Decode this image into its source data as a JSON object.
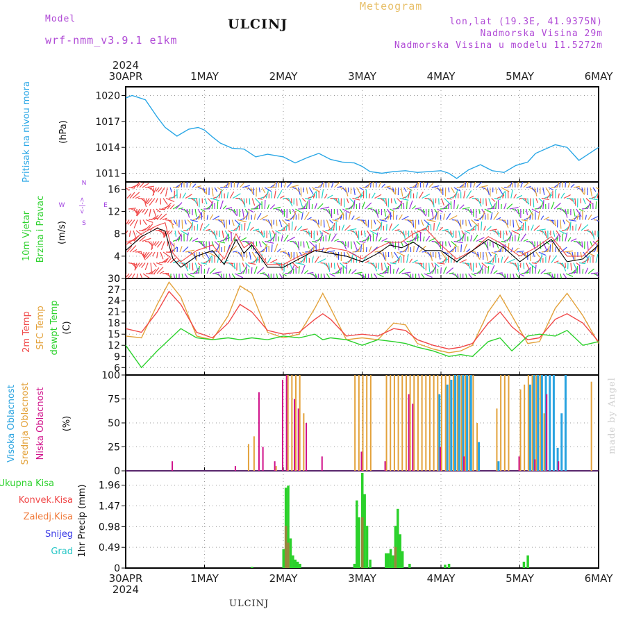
{
  "header": {
    "model_label": "Model",
    "model_name": "wrf-nmm_v3.9.1 e1km",
    "title": "ULCINJ",
    "meteogram_label": "Meteogram",
    "lonlat": "lon,lat (19.3E, 41.9375N)",
    "elevation": "Nadmorska Visina 29m",
    "model_elevation": "Nadmorska Visina u modelu 11.5272m"
  },
  "footer": {
    "station": "ULCINJ",
    "credit": "made by Angel"
  },
  "colors": {
    "pressure": "#2aa7e6",
    "t2m": "#f04848",
    "sfc": "#e3a23b",
    "dewpt": "#2bd12b",
    "wind_speed": "#000000",
    "gust": "#f04848",
    "cloud_high": "#29a3e0",
    "cloud_mid": "#e3a23b",
    "cloud_low": "#d0108a",
    "precip_total": "#2bd12b",
    "precip_conv": "#f04848"
  },
  "chart_data": [
    {
      "type": "line",
      "name": "pressure",
      "year_label": "2024",
      "x_labels": [
        "30APR",
        "1MAY",
        "2MAY",
        "3MAY",
        "4MAY",
        "5MAY",
        "6MAY"
      ],
      "ylabel_left": "Pritisak na nivou mora",
      "ylabel_unit": "(hPa)",
      "yticks": [
        1011,
        1014,
        1017,
        1020
      ],
      "ylim": [
        1010,
        1021
      ],
      "x_days": [
        0,
        0.08,
        0.15,
        0.25,
        0.4,
        0.5,
        0.65,
        0.8,
        0.92,
        1.0,
        1.1,
        1.2,
        1.35,
        1.5,
        1.65,
        1.8,
        2.0,
        2.15,
        2.3,
        2.45,
        2.6,
        2.75,
        2.9,
        3.0,
        3.1,
        3.25,
        3.4,
        3.55,
        3.7,
        3.85,
        4.0,
        4.1,
        4.2,
        4.35,
        4.5,
        4.65,
        4.8,
        4.95,
        5.1,
        5.2,
        5.3,
        5.45,
        5.6,
        5.75,
        5.9,
        6.0
      ],
      "values": [
        1019.7,
        1020.0,
        1019.8,
        1019.5,
        1017.5,
        1016.3,
        1015.3,
        1016.1,
        1016.3,
        1016.0,
        1015.2,
        1014.5,
        1013.9,
        1013.8,
        1012.9,
        1013.2,
        1012.9,
        1012.2,
        1012.8,
        1013.3,
        1012.6,
        1012.3,
        1012.2,
        1011.8,
        1011.2,
        1011.0,
        1011.2,
        1011.3,
        1011.1,
        1011.2,
        1011.3,
        1011.0,
        1010.4,
        1011.4,
        1012.0,
        1011.3,
        1011.1,
        1011.9,
        1012.3,
        1013.3,
        1013.7,
        1014.3,
        1014.0,
        1012.5,
        1013.4,
        1014.0
      ]
    },
    {
      "type": "line",
      "name": "wind",
      "ylabel_left": "10m Vjetar",
      "ylabel_left2": "Brzina i Pravac",
      "ylabel_unit": "(m/s)",
      "compass_left": "W",
      "compass_right": "E",
      "compass_arrows": "<-|->",
      "compass_top": "N",
      "compass_bottom": "S",
      "yticks": [
        0,
        4,
        8,
        12,
        16
      ],
      "ylim": [
        0,
        17.3
      ],
      "x_days": [
        0,
        0.2,
        0.4,
        0.5,
        0.6,
        0.7,
        0.9,
        1.1,
        1.25,
        1.4,
        1.5,
        1.6,
        1.8,
        2.0,
        2.2,
        2.4,
        2.6,
        2.8,
        3.0,
        3.2,
        3.35,
        3.5,
        3.65,
        3.8,
        4.0,
        4.2,
        4.4,
        4.6,
        4.8,
        5.0,
        5.2,
        5.4,
        5.6,
        5.8,
        6.0
      ],
      "speed": [
        5.0,
        7.5,
        9.0,
        8.5,
        3.5,
        2.0,
        4.0,
        5.0,
        2.5,
        7.0,
        4.5,
        6.0,
        2.0,
        2.0,
        3.5,
        5.0,
        4.5,
        4.0,
        3.0,
        4.5,
        6.0,
        5.5,
        6.5,
        5.0,
        5.0,
        3.0,
        5.0,
        7.0,
        5.5,
        3.0,
        5.0,
        7.0,
        3.0,
        3.5,
        6.0
      ],
      "gust": [
        6.0,
        8.0,
        9.5,
        10.0,
        4.5,
        3.0,
        5.0,
        6.0,
        3.5,
        8.0,
        5.5,
        6.5,
        2.5,
        2.5,
        4.0,
        5.0,
        5.5,
        5.0,
        3.5,
        5.5,
        6.5,
        6.5,
        8.0,
        9.0,
        6.0,
        3.5,
        5.0,
        7.5,
        6.0,
        4.0,
        5.5,
        7.5,
        4.0,
        4.0,
        7.0
      ]
    },
    {
      "type": "line",
      "name": "temperature",
      "ylabel_1": "2m Temp",
      "ylabel_2": "SFC Temp",
      "ylabel_3": "dewpt Temp",
      "ylabel_unit": "(C)",
      "yticks": [
        6,
        9,
        12,
        15,
        18,
        21,
        24,
        27,
        30
      ],
      "ylim": [
        4,
        30
      ],
      "x_days": [
        0,
        0.2,
        0.4,
        0.55,
        0.7,
        0.9,
        1.1,
        1.3,
        1.45,
        1.6,
        1.8,
        2.0,
        2.2,
        2.4,
        2.5,
        2.6,
        2.8,
        3.0,
        3.2,
        3.4,
        3.55,
        3.7,
        3.9,
        4.1,
        4.25,
        4.4,
        4.6,
        4.75,
        4.9,
        5.1,
        5.25,
        5.45,
        5.6,
        5.8,
        6.0
      ],
      "t2m": [
        16.5,
        15.5,
        21.0,
        26.5,
        23.0,
        15.5,
        14.0,
        18.0,
        23.0,
        21.0,
        16.0,
        15.0,
        15.5,
        19.0,
        20.5,
        19.0,
        14.5,
        15.0,
        14.5,
        16.5,
        16.0,
        13.5,
        12.0,
        11.0,
        11.5,
        12.5,
        18.0,
        21.0,
        17.0,
        13.5,
        14.0,
        19.0,
        20.5,
        18.0,
        13.0
      ],
      "sfc": [
        14.5,
        14.0,
        23.0,
        29.0,
        25.0,
        14.5,
        13.5,
        20.0,
        28.0,
        26.0,
        15.5,
        14.0,
        15.0,
        22.0,
        26.0,
        22.0,
        13.5,
        14.0,
        13.5,
        18.0,
        17.5,
        12.5,
        11.0,
        10.0,
        10.5,
        12.0,
        21.0,
        25.5,
        20.0,
        12.5,
        13.0,
        22.0,
        26.0,
        20.0,
        12.5
      ],
      "dewpt": [
        12.0,
        6.0,
        10.5,
        13.5,
        16.5,
        14.0,
        13.5,
        14.0,
        13.5,
        14.0,
        13.5,
        14.5,
        14.0,
        15.0,
        13.5,
        14.0,
        13.5,
        12.0,
        13.5,
        13.0,
        12.5,
        11.5,
        10.5,
        9.0,
        9.5,
        9.0,
        13.0,
        14.0,
        10.5,
        14.5,
        15.0,
        14.5,
        16.0,
        12.0,
        13.0
      ]
    },
    {
      "type": "bar",
      "name": "cloud_cover",
      "ylabel_1": "Visoka Oblacnost",
      "ylabel_2": "Srednja Oblacnost",
      "ylabel_3": "Niska Oblacnost",
      "ylabel_unit": "(%)",
      "yticks": [
        0,
        25,
        50,
        75,
        100
      ],
      "ylim": [
        0,
        100
      ],
      "low": [
        [
          0.6,
          10
        ],
        [
          1.4,
          5
        ],
        [
          1.7,
          82
        ],
        [
          1.75,
          25
        ],
        [
          1.9,
          10
        ],
        [
          2.0,
          95
        ],
        [
          2.05,
          100
        ],
        [
          2.15,
          75
        ],
        [
          2.2,
          65
        ],
        [
          2.3,
          50
        ],
        [
          2.5,
          15
        ],
        [
          3.0,
          20
        ],
        [
          3.3,
          10
        ],
        [
          3.6,
          80
        ],
        [
          3.65,
          70
        ],
        [
          4.0,
          25
        ],
        [
          4.3,
          15
        ],
        [
          5.0,
          15
        ],
        [
          5.2,
          12
        ],
        [
          5.35,
          80
        ],
        [
          5.5,
          10
        ]
      ],
      "mid": [
        [
          1.55,
          28
        ],
        [
          1.62,
          36
        ],
        [
          1.9,
          5
        ],
        [
          2.05,
          100
        ],
        [
          2.1,
          100
        ],
        [
          2.15,
          100
        ],
        [
          2.2,
          100
        ],
        [
          2.25,
          60
        ],
        [
          2.9,
          100
        ],
        [
          2.95,
          100
        ],
        [
          3.0,
          100
        ],
        [
          3.05,
          100
        ],
        [
          3.1,
          100
        ],
        [
          3.3,
          100
        ],
        [
          3.35,
          100
        ],
        [
          3.4,
          100
        ],
        [
          3.45,
          100
        ],
        [
          3.5,
          100
        ],
        [
          3.55,
          100
        ],
        [
          3.6,
          100
        ],
        [
          3.65,
          100
        ],
        [
          3.7,
          100
        ],
        [
          3.75,
          100
        ],
        [
          3.8,
          100
        ],
        [
          3.85,
          100
        ],
        [
          3.9,
          100
        ],
        [
          3.95,
          100
        ],
        [
          4.0,
          100
        ],
        [
          4.05,
          100
        ],
        [
          4.1,
          100
        ],
        [
          4.15,
          100
        ],
        [
          4.2,
          100
        ],
        [
          4.25,
          100
        ],
        [
          4.3,
          100
        ],
        [
          4.35,
          100
        ],
        [
          4.4,
          100
        ],
        [
          4.45,
          50
        ],
        [
          4.7,
          65
        ],
        [
          4.75,
          100
        ],
        [
          4.8,
          100
        ],
        [
          4.85,
          100
        ],
        [
          5.0,
          85
        ],
        [
          5.05,
          90
        ],
        [
          5.1,
          100
        ],
        [
          5.15,
          100
        ],
        [
          5.2,
          100
        ],
        [
          5.25,
          100
        ],
        [
          5.3,
          60
        ],
        [
          5.9,
          93
        ]
      ],
      "high": [
        [
          3.95,
          80
        ],
        [
          4.05,
          90
        ],
        [
          4.1,
          95
        ],
        [
          4.15,
          100
        ],
        [
          4.2,
          100
        ],
        [
          4.25,
          100
        ],
        [
          4.3,
          100
        ],
        [
          4.35,
          100
        ],
        [
          4.45,
          30
        ],
        [
          4.7,
          10
        ],
        [
          5.1,
          90
        ],
        [
          5.15,
          100
        ],
        [
          5.2,
          100
        ],
        [
          5.25,
          100
        ],
        [
          5.3,
          100
        ],
        [
          5.35,
          100
        ],
        [
          5.4,
          100
        ],
        [
          5.45,
          24
        ],
        [
          5.5,
          60
        ],
        [
          5.55,
          100
        ]
      ]
    },
    {
      "type": "bar",
      "name": "precipitation",
      "ylabel_legend": [
        "Ukupna Kisa",
        "Konvek.Kisa",
        "Zaledj.Kisa",
        "Snijeg",
        "Grad"
      ],
      "ylabel_unit": "1hr Precip (mm)",
      "yticks": [
        0,
        0.49,
        0.98,
        1.47,
        1.96
      ],
      "ylim": [
        0,
        2.3
      ],
      "total": [
        [
          1.6,
          0.03
        ],
        [
          2.0,
          0.45
        ],
        [
          2.03,
          1.9
        ],
        [
          2.06,
          1.95
        ],
        [
          2.09,
          0.7
        ],
        [
          2.12,
          0.3
        ],
        [
          2.15,
          0.2
        ],
        [
          2.18,
          0.15
        ],
        [
          2.21,
          0.1
        ],
        [
          2.9,
          0.1
        ],
        [
          2.93,
          1.6
        ],
        [
          2.96,
          1.2
        ],
        [
          3.0,
          2.25
        ],
        [
          3.03,
          1.75
        ],
        [
          3.06,
          1.0
        ],
        [
          3.1,
          0.2
        ],
        [
          3.3,
          0.35
        ],
        [
          3.33,
          0.35
        ],
        [
          3.36,
          0.45
        ],
        [
          3.39,
          0.3
        ],
        [
          3.42,
          1.0
        ],
        [
          3.45,
          1.4
        ],
        [
          3.48,
          0.8
        ],
        [
          3.51,
          0.4
        ],
        [
          3.6,
          0.1
        ],
        [
          4.05,
          0.08
        ],
        [
          4.1,
          0.1
        ],
        [
          5.05,
          0.15
        ],
        [
          5.1,
          0.3
        ]
      ],
      "convective": [
        [
          2.03,
          1.0
        ],
        [
          2.06,
          0.6
        ],
        [
          3.0,
          1.2
        ],
        [
          3.42,
          0.5
        ]
      ]
    }
  ]
}
